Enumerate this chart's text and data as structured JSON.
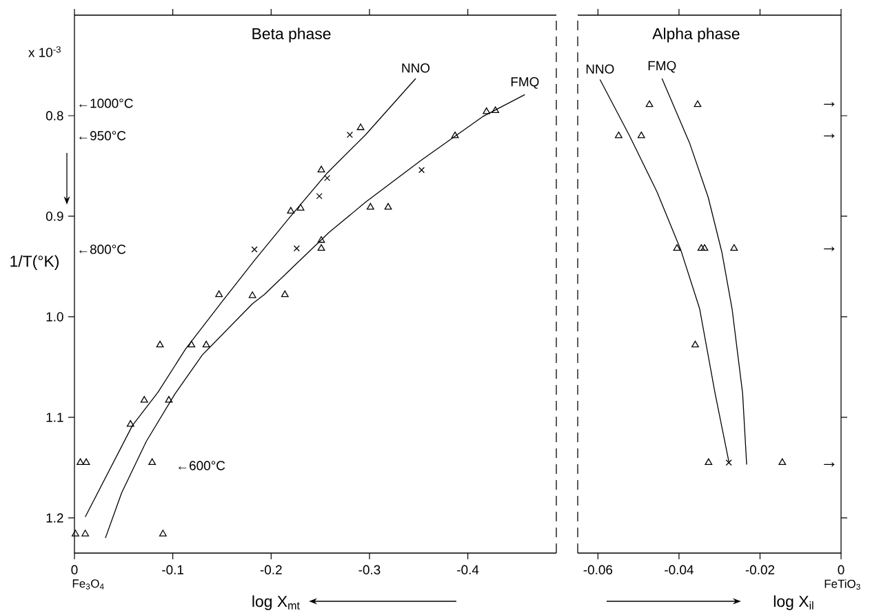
{
  "chart_data": [
    {
      "type": "scatter",
      "title": "Beta phase",
      "xlabel": "log X$_{mt}$",
      "ylabel": "1/T(°K)",
      "xlim": [
        0,
        -0.49
      ],
      "ylim": [
        1.235,
        0.7
      ],
      "xticks": [
        0,
        -0.1,
        -0.2,
        -0.3,
        -0.4
      ],
      "yticks": [
        0.8,
        0.9,
        {
          "value": 1,
          "label": "1.0"
        },
        1.1,
        1.2
      ],
      "annotations": [
        "x 10$^{-3}$",
        "Fe$_{3}$O$_{4}$",
        "←1000°C",
        "←950°C",
        "←800°C",
        "←600°C"
      ],
      "series": [
        {
          "name": "NNO",
          "type": "line",
          "color": "#000000",
          "x": [
            -0.347,
            -0.296,
            -0.257,
            -0.219,
            -0.183,
            -0.15,
            -0.113,
            -0.085,
            -0.059,
            -0.011
          ],
          "values": [
            0.763,
            0.819,
            0.857,
            0.901,
            0.944,
            0.985,
            1.032,
            1.075,
            1.108,
            1.199
          ]
        },
        {
          "name": "FMQ",
          "type": "line",
          "color": "#000000",
          "x": [
            -0.458,
            -0.415,
            -0.353,
            -0.296,
            -0.259,
            -0.193,
            -0.181,
            -0.13,
            -0.102,
            -0.073,
            -0.048,
            -0.0315
          ],
          "values": [
            0.779,
            0.801,
            0.844,
            0.886,
            0.916,
            0.978,
            0.987,
            1.038,
            1.077,
            1.124,
            1.175,
            1.22
          ]
        },
        {
          "marker": "triangle",
          "color": "#000000",
          "x": [
            -0.419,
            -0.428,
            -0.291,
            -0.387,
            -0.251,
            -0.22,
            -0.23,
            -0.301,
            -0.319,
            -0.251,
            -0.251,
            -0.147,
            -0.181,
            -0.214,
            -0.087,
            -0.119,
            -0.134,
            -0.071,
            -0.096,
            -0.057,
            -0.006,
            -0.012,
            -0.079,
            -0.001,
            -0.011,
            -0.09
          ],
          "values": [
            0.796,
            0.795,
            0.812,
            0.82,
            0.854,
            0.895,
            0.892,
            0.891,
            0.891,
            0.924,
            0.932,
            0.978,
            0.979,
            0.978,
            1.028,
            1.028,
            1.028,
            1.083,
            1.083,
            1.107,
            1.145,
            1.145,
            1.145,
            1.216,
            1.216,
            1.216
          ]
        },
        {
          "marker": "cross",
          "color": "#000000",
          "x": [
            -0.28,
            -0.257,
            -0.353,
            -0.249,
            -0.183,
            -0.226
          ],
          "values": [
            0.819,
            0.862,
            0.854,
            0.88,
            0.933,
            0.932
          ]
        }
      ]
    },
    {
      "type": "scatter",
      "title": "Alpha phase",
      "xlabel": "log X$_{il}$",
      "xlim": [
        -0.065,
        0
      ],
      "ylim": [
        1.235,
        0.7
      ],
      "tick_labels": "x",
      "xticks": [
        -0.06,
        -0.04,
        -0.02,
        0
      ],
      "yticks": [
        0.8,
        0.9,
        1.0,
        1.1,
        1.2
      ],
      "annotations": [
        "FeTiO$_{3}$",
        "→",
        "→",
        "→",
        "→"
      ],
      "series": [
        {
          "name": "NNO",
          "type": "line",
          "color": "#000000",
          "x": [
            -0.0595,
            -0.0522,
            -0.0454,
            -0.0396,
            -0.0349,
            -0.0311,
            -0.0277
          ],
          "values": [
            0.764,
            0.82,
            0.876,
            0.933,
            0.992,
            1.076,
            1.144
          ]
        },
        {
          "name": "FMQ",
          "type": "line",
          "color": "#000000",
          "x": [
            -0.0442,
            -0.0374,
            -0.0328,
            -0.0294,
            -0.0269,
            -0.0243,
            -0.0233
          ],
          "values": [
            0.763,
            0.827,
            0.881,
            0.936,
            0.992,
            1.076,
            1.147
          ]
        },
        {
          "marker": "triangle",
          "color": "#000000",
          "x": [
            -0.0473,
            -0.0354,
            -0.0549,
            -0.0493,
            -0.0405,
            -0.0345,
            -0.0337,
            -0.0264,
            -0.036,
            -0.0327,
            -0.0145
          ],
          "values": [
            0.789,
            0.789,
            0.82,
            0.82,
            0.932,
            0.932,
            0.932,
            0.932,
            1.028,
            1.145,
            1.145
          ]
        },
        {
          "marker": "cross",
          "color": "#000000",
          "x": [
            -0.0277
          ],
          "values": [
            1.145
          ]
        }
      ]
    }
  ]
}
